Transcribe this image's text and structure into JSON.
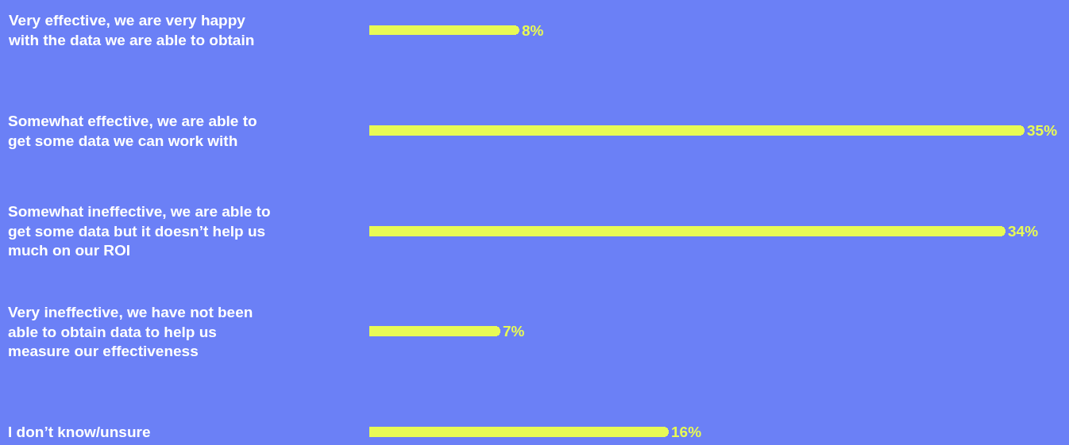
{
  "chart_data": {
    "type": "bar",
    "orientation": "horizontal",
    "categories": [
      "Very effective, we are very happy with the data we are able to obtain",
      "Somewhat effective, we are able to get some data we can work with",
      "Somewhat ineffective, we are able to get some data but it doesn’t help us much on our ROI",
      "Very ineffective, we have not been able to obtain data to help us measure our effectiveness",
      "I don’t know/unsure"
    ],
    "values": [
      8,
      35,
      34,
      7,
      16
    ],
    "value_labels": [
      "8%",
      "35%",
      "34%",
      "7%",
      "16%"
    ],
    "color": "#e8fa55"
  }
}
